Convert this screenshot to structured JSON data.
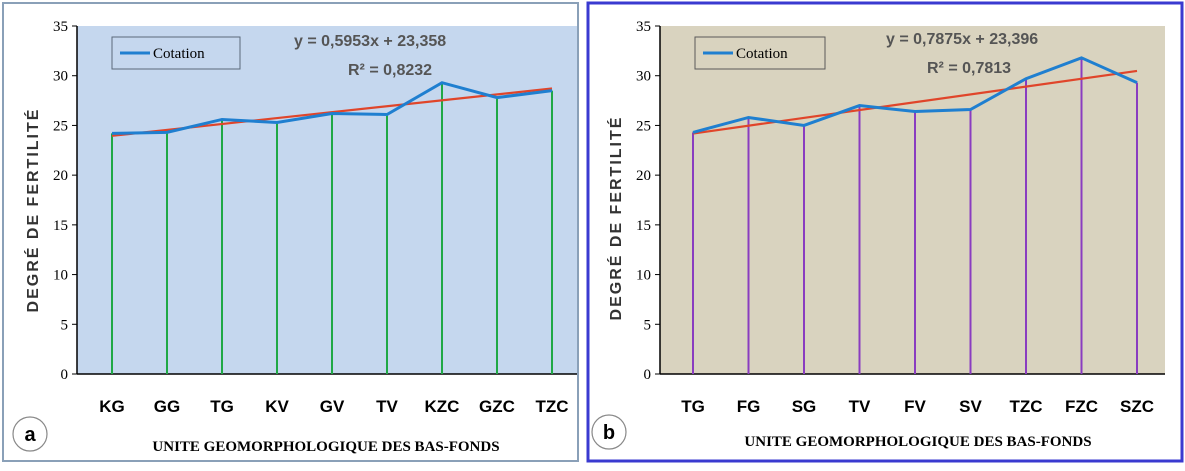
{
  "charts": [
    {
      "panel_label": "a",
      "ylabel": "DEGRÉ DE FERTILITÉ",
      "xlabel": "UNITE GEOMORPHOLOGIQUE DES BAS-FONDS",
      "legend": "Cotation",
      "equation": "y = 0,5953x + 23,358",
      "r2": "R² = 0,8232",
      "yticks": [
        "0",
        "5",
        "10",
        "15",
        "20",
        "25",
        "30",
        "35"
      ],
      "colors": {
        "plot_bg": "#c5d7ee",
        "frame": "#8aa0b8",
        "drop": "#20a845",
        "series": "#1f7fd0",
        "trend": "#e0452a"
      }
    },
    {
      "panel_label": "b",
      "ylabel": "DEGRÉ DE FERTILITÉ",
      "xlabel": "UNITE GEOMORPHOLOGIQUE DES BAS-FONDS",
      "legend": "Cotation",
      "equation": "y = 0,7875x + 23,396",
      "r2": "R² = 0,7813",
      "yticks": [
        "0",
        "5",
        "10",
        "15",
        "20",
        "25",
        "30",
        "35"
      ],
      "colors": {
        "plot_bg": "#d9d3bf",
        "frame": "#3a3ad0",
        "drop": "#8a3cc0",
        "series": "#1f7fd0",
        "trend": "#e0452a"
      }
    }
  ],
  "chart_data": [
    {
      "type": "line",
      "categories": [
        "KG",
        "GG",
        "TG",
        "KV",
        "GV",
        "TV",
        "KZC",
        "GZC",
        "TZC"
      ],
      "series": [
        {
          "name": "Cotation",
          "values": [
            24.2,
            24.3,
            25.6,
            25.3,
            26.2,
            26.1,
            29.3,
            27.8,
            28.5
          ]
        }
      ],
      "trendline": {
        "slope": 0.5953,
        "intercept": 23.358,
        "r2": 0.8232
      },
      "ylim": [
        0,
        35
      ],
      "xlabel": "UNITE GEOMORPHOLOGIQUE DES BAS-FONDS",
      "ylabel": "DEGRÉ DE FERTILITÉ",
      "legend_position": "top-left",
      "grid": false
    },
    {
      "type": "line",
      "categories": [
        "TG",
        "FG",
        "SG",
        "TV",
        "FV",
        "SV",
        "TZC",
        "FZC",
        "SZC"
      ],
      "series": [
        {
          "name": "Cotation",
          "values": [
            24.3,
            25.8,
            25.0,
            27.0,
            26.4,
            26.6,
            29.7,
            31.8,
            29.3
          ]
        }
      ],
      "trendline": {
        "slope": 0.7875,
        "intercept": 23.396,
        "r2": 0.7813
      },
      "ylim": [
        0,
        35
      ],
      "xlabel": "UNITE GEOMORPHOLOGIQUE DES BAS-FONDS",
      "ylabel": "DEGRÉ DE FERTILITÉ",
      "legend_position": "top-left",
      "grid": false
    }
  ]
}
